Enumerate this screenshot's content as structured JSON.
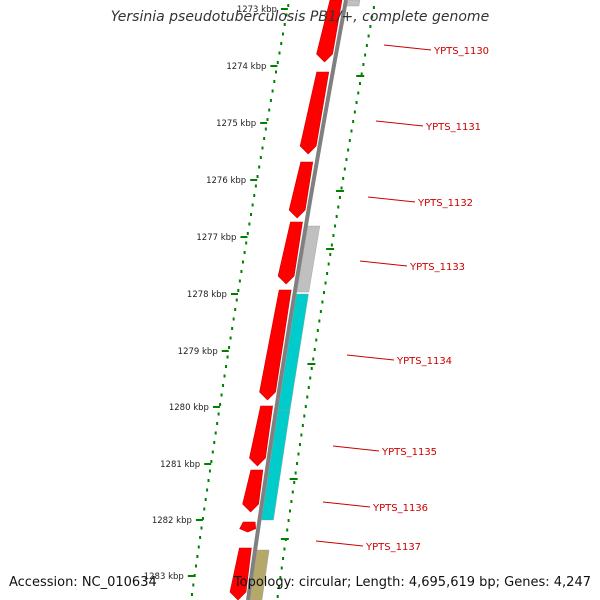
{
  "title": "Yersinia pseudotuberculosis PB1/+, complete genome",
  "accession": "Accession: NC_010634",
  "stats": "Topology: circular; Length: 4,695,619 bp; Genes: 4,247",
  "colors": {
    "backbone": "#808080",
    "forward_gene": "#ff0000",
    "reverse_gene_grey": "#c0c0c0",
    "reverse_gene_cyan": "#00cccc",
    "reverse_gene_olive": "#b5a86a",
    "tick": "#008000",
    "gene_label": "#cc0000",
    "kbp_label": "#222222"
  },
  "kbp_labels": [
    "1273 kbp",
    "1274 kbp",
    "1275 kbp",
    "1276 kbp",
    "1277 kbp",
    "1278 kbp",
    "1279 kbp",
    "1280 kbp",
    "1281 kbp",
    "1282 kbp",
    "1283 kbp"
  ],
  "gene_labels": [
    "YPTS_1130",
    "YPTS_1131",
    "YPTS_1132",
    "YPTS_1133",
    "YPTS_1134",
    "YPTS_1135",
    "YPTS_1136",
    "YPTS_1137"
  ]
}
